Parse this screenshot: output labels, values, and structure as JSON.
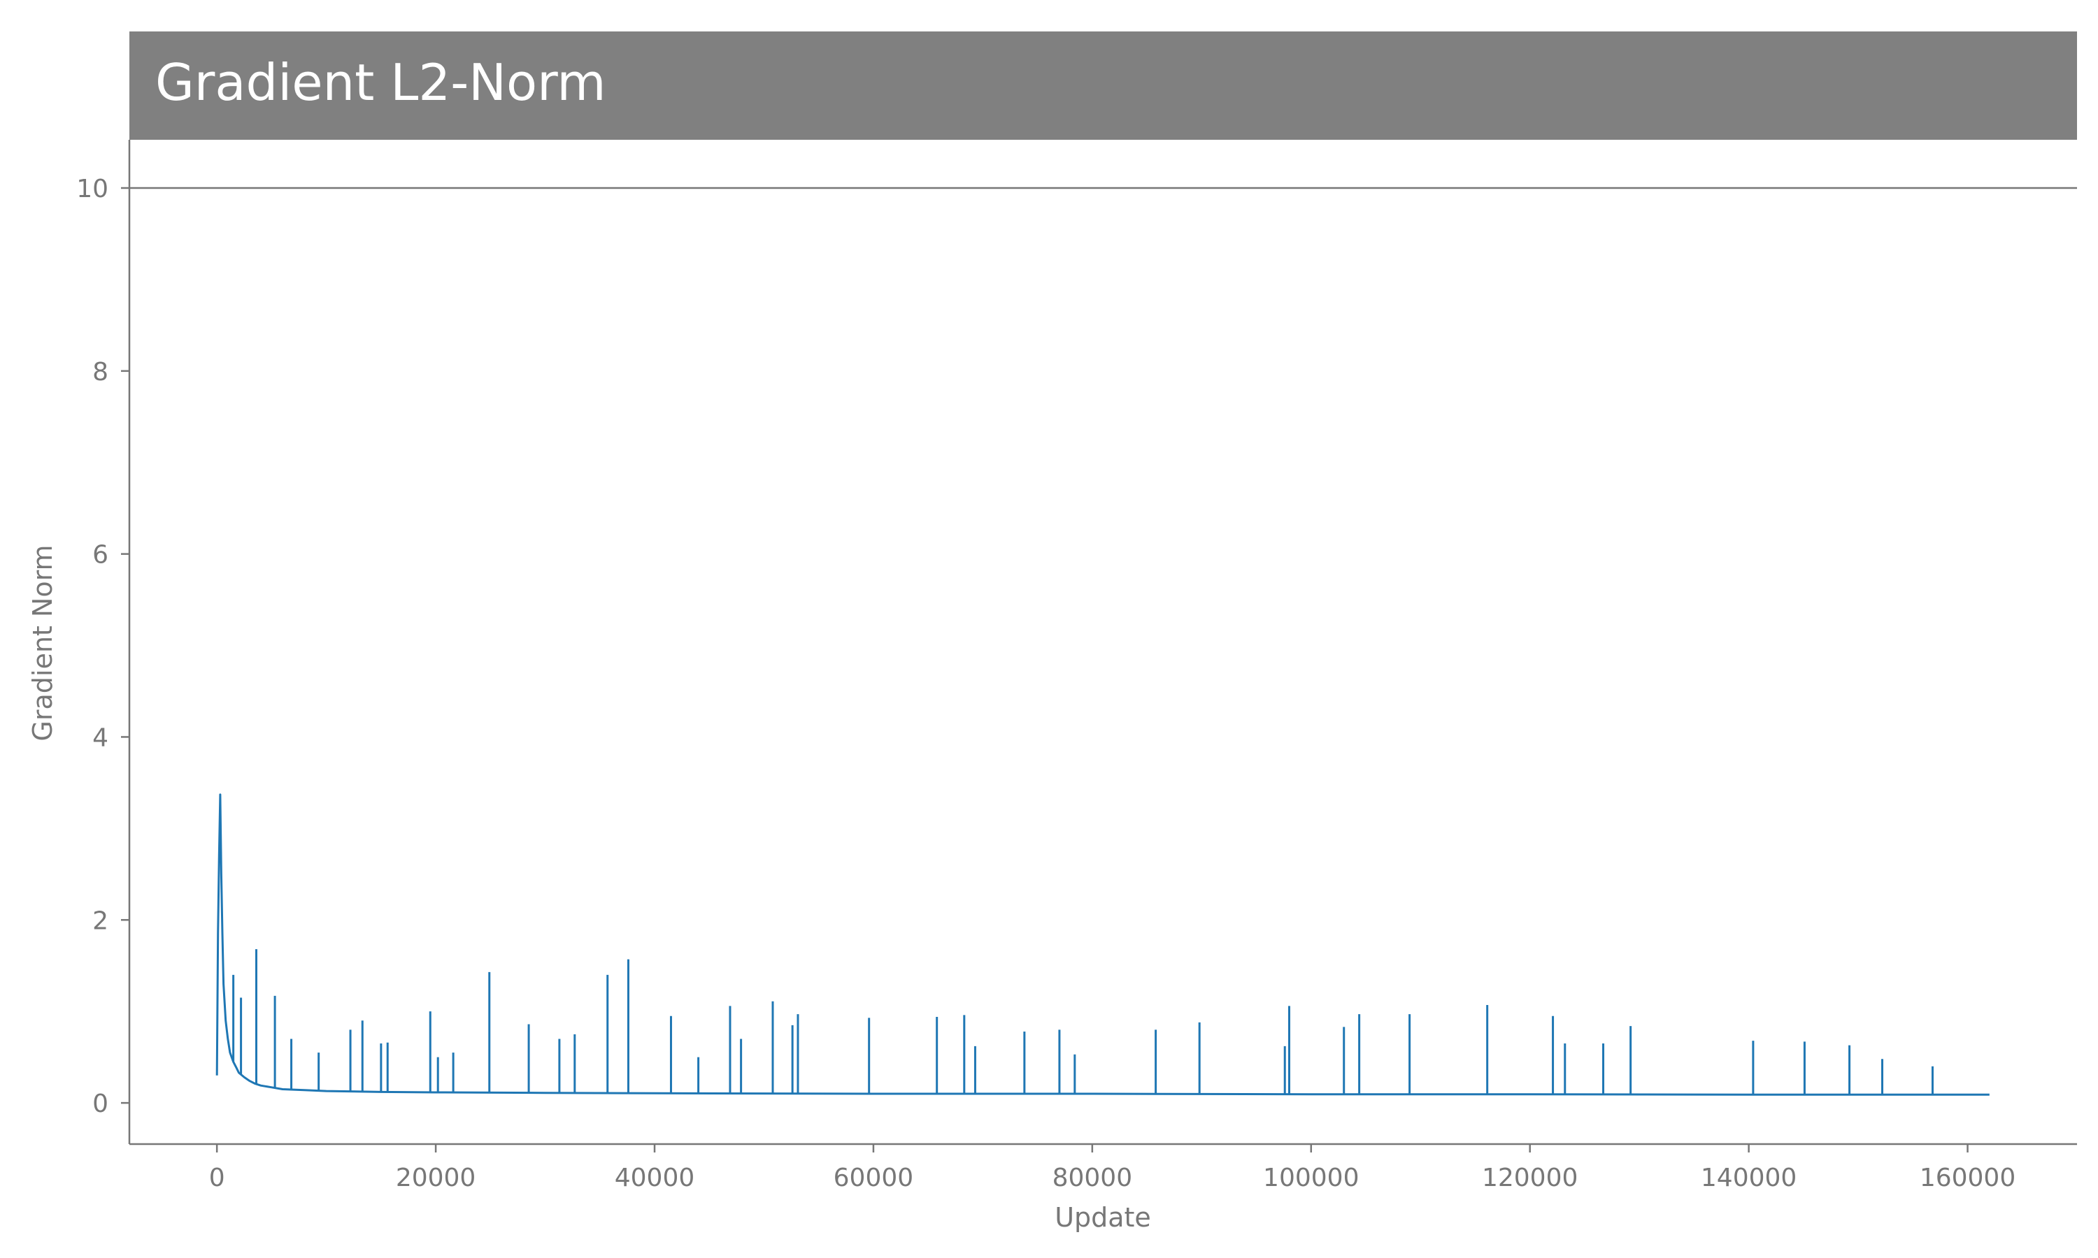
{
  "chart_data": {
    "type": "line",
    "title": "Gradient L2-Norm",
    "xlabel": "Update",
    "ylabel": "Gradient Norm",
    "xlim": [
      -8000,
      170000
    ],
    "ylim": [
      -0.45,
      10
    ],
    "xticks": [
      0,
      20000,
      40000,
      60000,
      80000,
      100000,
      120000,
      140000,
      160000
    ],
    "xtick_labels": [
      "0",
      "20000",
      "40000",
      "60000",
      "80000",
      "100000",
      "120000",
      "140000",
      "160000"
    ],
    "yticks": [
      0,
      2,
      4,
      6,
      8,
      10
    ],
    "ytick_labels": [
      "0",
      "2",
      "4",
      "6",
      "8",
      "10"
    ],
    "grid": false,
    "legend": "none",
    "colors": {
      "line": "#1f77b4",
      "title_bar": "#808080",
      "axis": "#777777"
    },
    "series": [
      {
        "x": [
          0,
          100,
          200,
          300,
          400,
          500,
          600,
          800,
          1000,
          1200,
          1500,
          1800,
          2000,
          2500,
          3000,
          3500,
          4000,
          5000,
          6000,
          8000,
          10000,
          15000,
          20000,
          30000,
          40000,
          60000,
          80000,
          100000,
          120000,
          140000,
          162000
        ],
        "y": [
          0.3,
          1.85,
          2.7,
          3.37,
          2.5,
          1.85,
          1.3,
          0.9,
          0.7,
          0.55,
          0.45,
          0.38,
          0.33,
          0.28,
          0.24,
          0.21,
          0.19,
          0.17,
          0.15,
          0.14,
          0.13,
          0.12,
          0.115,
          0.11,
          0.105,
          0.1,
          0.1,
          0.095,
          0.095,
          0.09,
          0.09
        ]
      }
    ],
    "spikes": [
      {
        "x": 1500,
        "y": 1.4
      },
      {
        "x": 2200,
        "y": 1.15
      },
      {
        "x": 3600,
        "y": 1.68
      },
      {
        "x": 5300,
        "y": 1.17
      },
      {
        "x": 6800,
        "y": 0.7
      },
      {
        "x": 9300,
        "y": 0.55
      },
      {
        "x": 12200,
        "y": 0.8
      },
      {
        "x": 13300,
        "y": 0.9
      },
      {
        "x": 15000,
        "y": 0.65
      },
      {
        "x": 15600,
        "y": 0.66
      },
      {
        "x": 19500,
        "y": 1.0
      },
      {
        "x": 20200,
        "y": 0.5
      },
      {
        "x": 21600,
        "y": 0.55
      },
      {
        "x": 24900,
        "y": 1.43
      },
      {
        "x": 28500,
        "y": 0.86
      },
      {
        "x": 31300,
        "y": 0.7
      },
      {
        "x": 32700,
        "y": 0.75
      },
      {
        "x": 35700,
        "y": 1.4
      },
      {
        "x": 37600,
        "y": 1.57
      },
      {
        "x": 41500,
        "y": 0.95
      },
      {
        "x": 44000,
        "y": 0.5
      },
      {
        "x": 46900,
        "y": 1.06
      },
      {
        "x": 47900,
        "y": 0.7
      },
      {
        "x": 50800,
        "y": 1.11
      },
      {
        "x": 52600,
        "y": 0.85
      },
      {
        "x": 53100,
        "y": 0.97
      },
      {
        "x": 59600,
        "y": 0.93
      },
      {
        "x": 65800,
        "y": 0.94
      },
      {
        "x": 68300,
        "y": 0.96
      },
      {
        "x": 69300,
        "y": 0.62
      },
      {
        "x": 73800,
        "y": 0.78
      },
      {
        "x": 77000,
        "y": 0.8
      },
      {
        "x": 78400,
        "y": 0.53
      },
      {
        "x": 85800,
        "y": 0.8
      },
      {
        "x": 89800,
        "y": 0.88
      },
      {
        "x": 97600,
        "y": 0.62
      },
      {
        "x": 98000,
        "y": 1.06
      },
      {
        "x": 103000,
        "y": 0.83
      },
      {
        "x": 104400,
        "y": 0.97
      },
      {
        "x": 109000,
        "y": 0.97
      },
      {
        "x": 116100,
        "y": 1.07
      },
      {
        "x": 122100,
        "y": 0.95
      },
      {
        "x": 123200,
        "y": 0.65
      },
      {
        "x": 126700,
        "y": 0.65
      },
      {
        "x": 129200,
        "y": 0.84
      },
      {
        "x": 140400,
        "y": 0.68
      },
      {
        "x": 145100,
        "y": 0.67
      },
      {
        "x": 149200,
        "y": 0.63
      },
      {
        "x": 152200,
        "y": 0.48
      },
      {
        "x": 156800,
        "y": 0.4
      }
    ]
  }
}
